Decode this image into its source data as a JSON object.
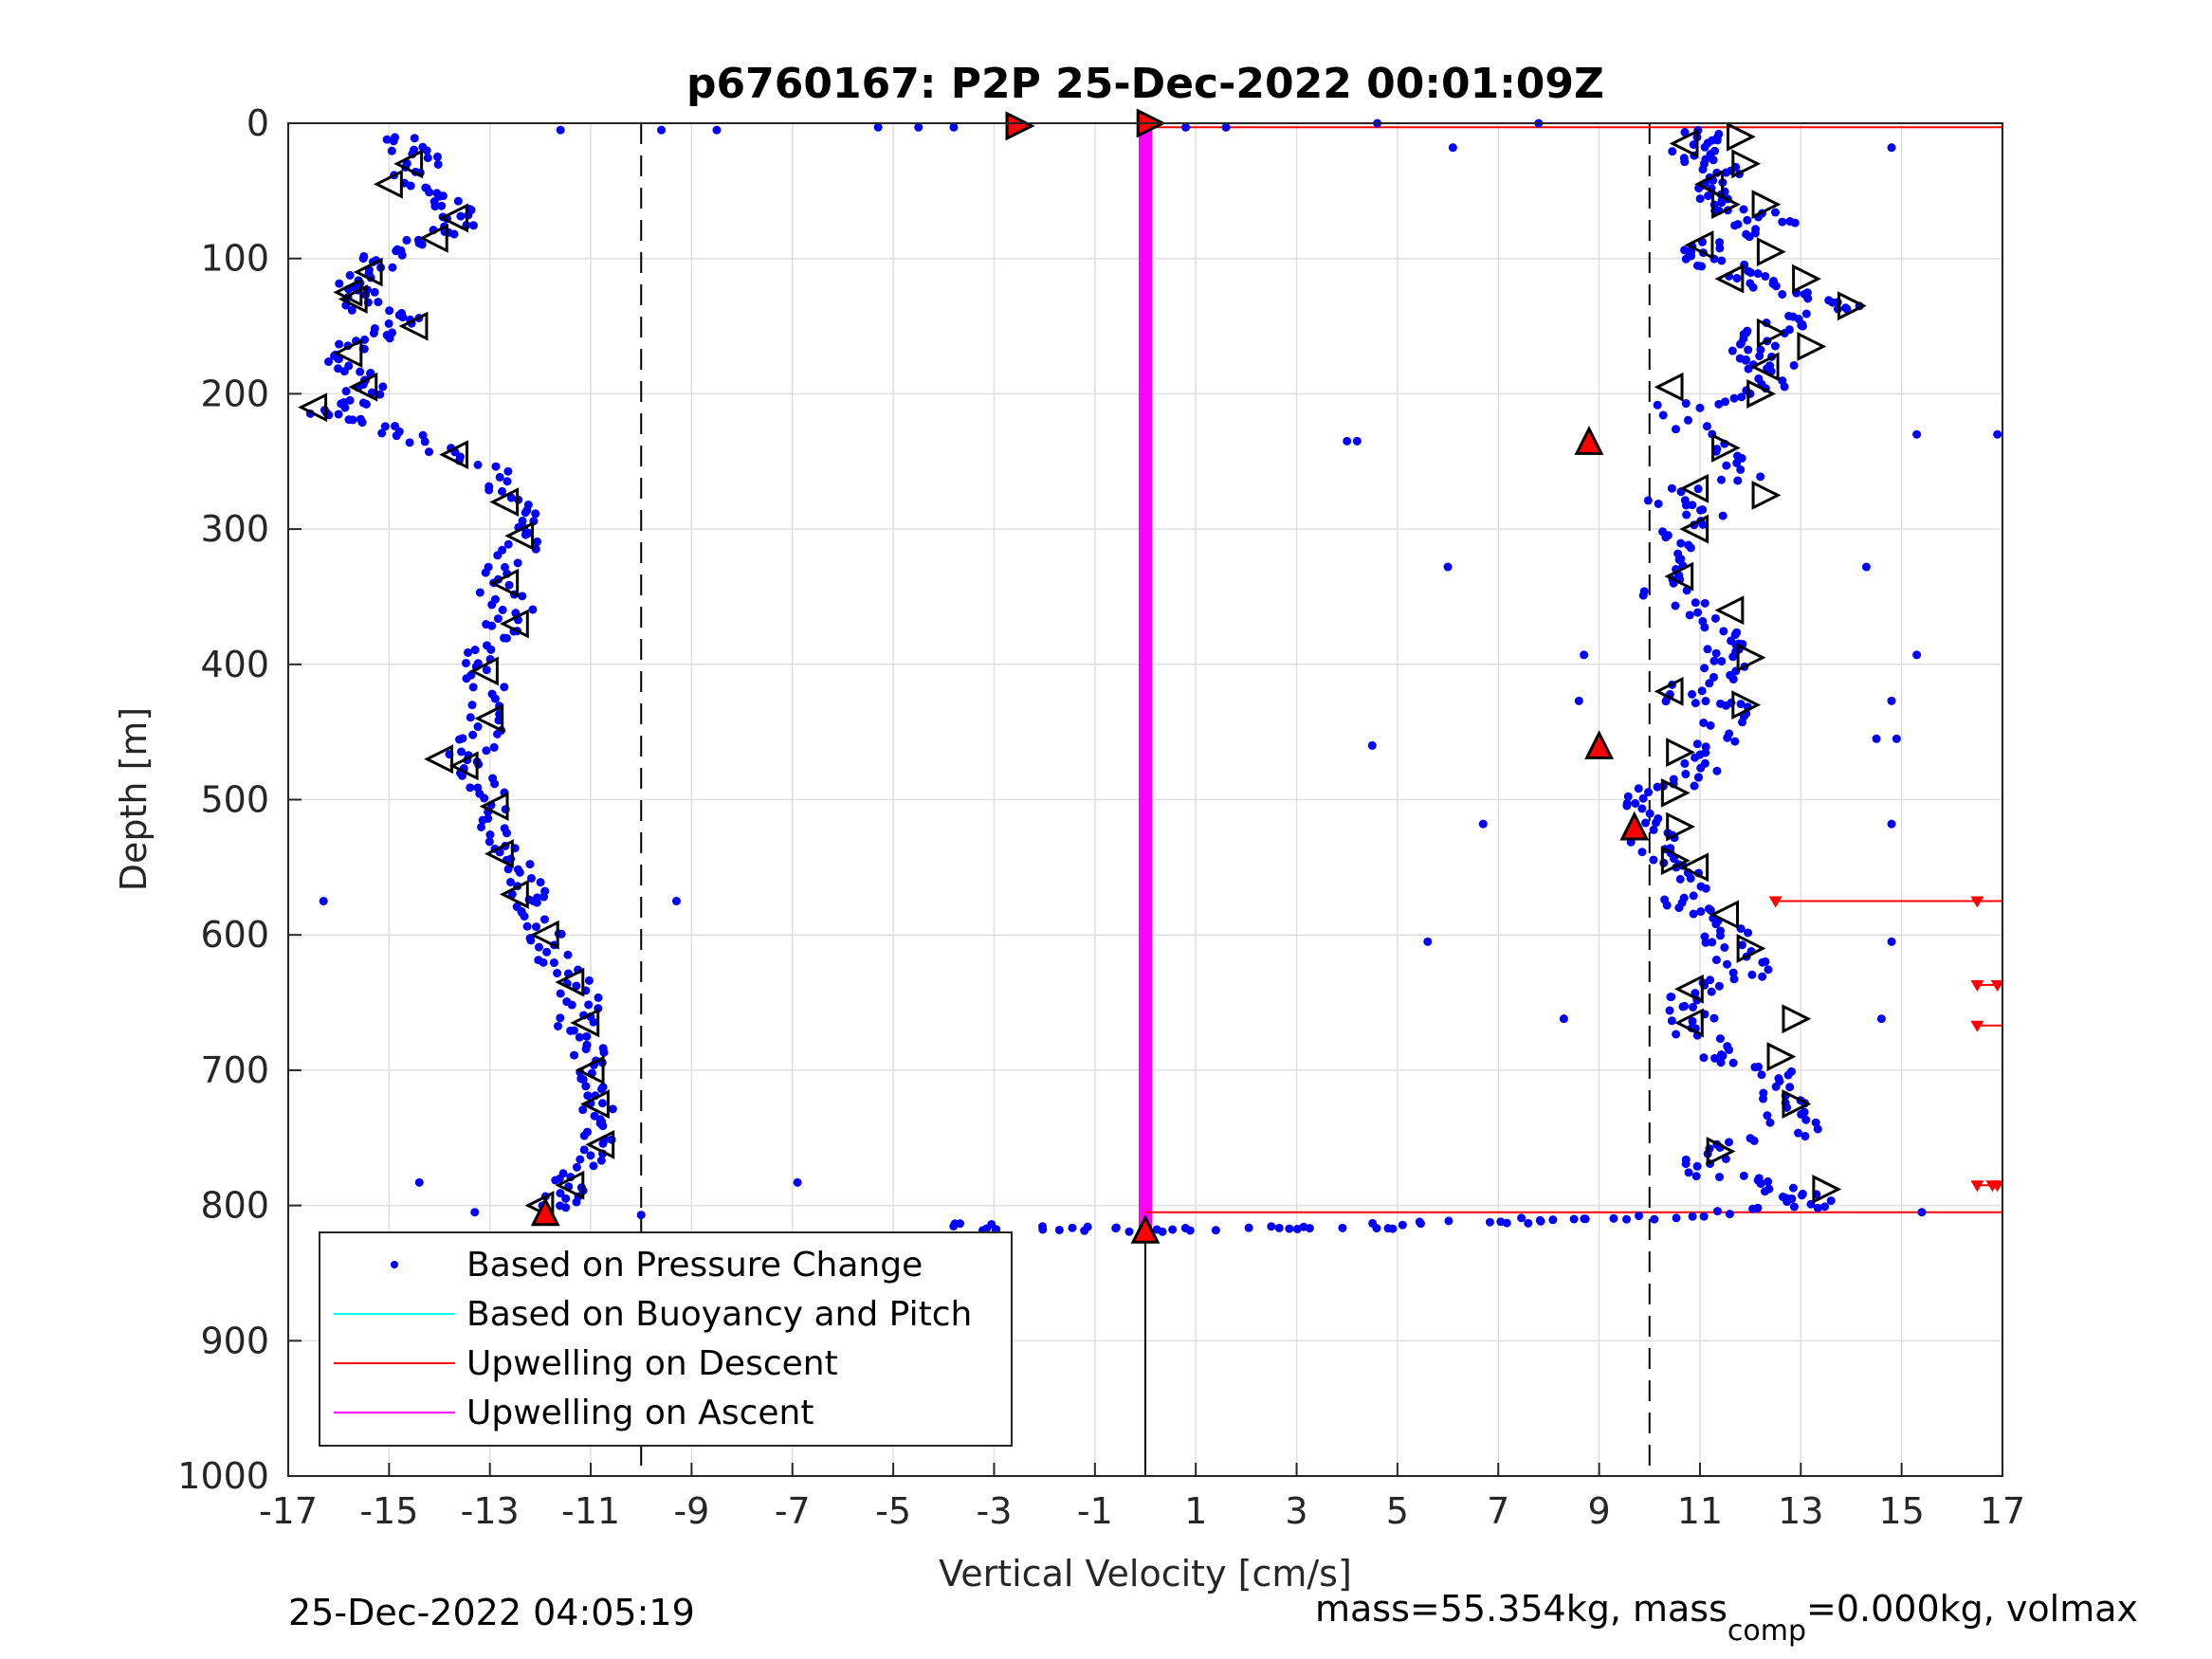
{
  "chart_data": {
    "type": "scatter",
    "title": "p6760167: P2P 25-Dec-2022 00:01:09Z",
    "xlabel": "Vertical Velocity [cm/s]",
    "ylabel": "Depth [m]",
    "xlim": [
      -17,
      17
    ],
    "ylim": [
      0,
      1000
    ],
    "y_reversed": true,
    "grid": true,
    "x_ticks": [
      "-17",
      "-15",
      "-13",
      "-11",
      "-9",
      "-7",
      "-5",
      "-3",
      "-1",
      "1",
      "3",
      "5",
      "7",
      "9",
      "11",
      "13",
      "15",
      "17"
    ],
    "y_ticks": [
      "0",
      "100",
      "200",
      "300",
      "400",
      "500",
      "600",
      "700",
      "800",
      "900",
      "1000"
    ],
    "reference_lines_x": [
      -10,
      0,
      10
    ],
    "legend": {
      "placement": "bottom-left",
      "entries": [
        {
          "label": "Based on Pressure Change",
          "color": "#0000ff",
          "marker": "dot"
        },
        {
          "label": "Based on Buoyancy and Pitch",
          "color": "#00ffff",
          "marker": "line"
        },
        {
          "label": "Upwelling on Descent",
          "color": "#ff0000",
          "marker": "line"
        },
        {
          "label": "Upwelling on Ascent",
          "color": "#ff00ff",
          "marker": "line"
        }
      ]
    },
    "series": [
      {
        "name": "Based on Pressure Change",
        "color": "#0000ff",
        "descent_profile": [
          [
            11.2,
            5
          ],
          [
            11.0,
            15
          ],
          [
            10.7,
            25
          ],
          [
            11.5,
            35
          ],
          [
            11.2,
            45
          ],
          [
            11.0,
            55
          ],
          [
            11.8,
            65
          ],
          [
            12.5,
            72
          ],
          [
            11.6,
            85
          ],
          [
            11.0,
            95
          ],
          [
            11.4,
            105
          ],
          [
            12.0,
            115
          ],
          [
            12.5,
            125
          ],
          [
            14.0,
            135
          ],
          [
            12.8,
            145
          ],
          [
            12.4,
            155
          ],
          [
            12.0,
            165
          ],
          [
            12.2,
            175
          ],
          [
            12.5,
            185
          ],
          [
            12.0,
            200
          ],
          [
            10.3,
            210
          ],
          [
            11.2,
            240
          ],
          [
            11.8,
            260
          ],
          [
            10.3,
            280
          ],
          [
            11.0,
            290
          ],
          [
            10.5,
            310
          ],
          [
            10.2,
            330
          ],
          [
            10.3,
            350
          ],
          [
            11.5,
            370
          ],
          [
            11.5,
            385
          ],
          [
            11.8,
            395
          ],
          [
            11.3,
            410
          ],
          [
            10.4,
            425
          ],
          [
            11.6,
            430
          ],
          [
            11.5,
            450
          ],
          [
            10.9,
            470
          ],
          [
            10.9,
            485
          ],
          [
            10.0,
            495
          ],
          [
            9.9,
            510
          ],
          [
            10.0,
            530
          ],
          [
            10.2,
            545
          ],
          [
            10.7,
            555
          ],
          [
            10.6,
            575
          ],
          [
            11.3,
            585
          ],
          [
            11.5,
            600
          ],
          [
            11.8,
            615
          ],
          [
            11.9,
            630
          ],
          [
            10.8,
            640
          ],
          [
            10.7,
            655
          ],
          [
            10.9,
            670
          ],
          [
            11.3,
            690
          ],
          [
            12.6,
            700
          ],
          [
            12.4,
            715
          ],
          [
            12.8,
            730
          ],
          [
            12.9,
            745
          ],
          [
            11.3,
            760
          ],
          [
            11.0,
            775
          ],
          [
            12.7,
            785
          ],
          [
            12.9,
            795
          ],
          [
            13.3,
            800
          ],
          [
            10.5,
            808
          ],
          [
            9.0,
            810
          ],
          [
            7.0,
            812
          ],
          [
            5.0,
            815
          ],
          [
            3.0,
            817
          ],
          [
            1.0,
            818
          ],
          [
            -1.0,
            818
          ],
          [
            -3.0,
            817
          ],
          [
            -4.0,
            814
          ]
        ],
        "ascent_profile": [
          [
            -14.8,
            10
          ],
          [
            -14.6,
            20
          ],
          [
            -14.3,
            30
          ],
          [
            -14.7,
            45
          ],
          [
            -14.0,
            55
          ],
          [
            -13.6,
            65
          ],
          [
            -13.4,
            75
          ],
          [
            -14.2,
            85
          ],
          [
            -15.0,
            95
          ],
          [
            -15.3,
            105
          ],
          [
            -15.8,
            115
          ],
          [
            -15.4,
            125
          ],
          [
            -15.5,
            135
          ],
          [
            -14.8,
            145
          ],
          [
            -15.2,
            155
          ],
          [
            -15.7,
            165
          ],
          [
            -16.0,
            175
          ],
          [
            -15.4,
            185
          ],
          [
            -15.5,
            195
          ],
          [
            -15.6,
            205
          ],
          [
            -16.3,
            212
          ],
          [
            -15.8,
            220
          ],
          [
            -14.6,
            230
          ],
          [
            -13.8,
            245
          ],
          [
            -12.8,
            260
          ],
          [
            -12.6,
            280
          ],
          [
            -12.3,
            295
          ],
          [
            -12.4,
            310
          ],
          [
            -12.7,
            330
          ],
          [
            -12.8,
            345
          ],
          [
            -12.5,
            360
          ],
          [
            -12.8,
            375
          ],
          [
            -13.0,
            390
          ],
          [
            -13.3,
            405
          ],
          [
            -13.0,
            425
          ],
          [
            -13.1,
            445
          ],
          [
            -13.3,
            460
          ],
          [
            -13.7,
            472
          ],
          [
            -13.1,
            485
          ],
          [
            -12.9,
            500
          ],
          [
            -12.8,
            520
          ],
          [
            -12.7,
            535
          ],
          [
            -12.3,
            550
          ],
          [
            -12.2,
            565
          ],
          [
            -12.4,
            575
          ],
          [
            -12.1,
            590
          ],
          [
            -11.9,
            605
          ],
          [
            -11.6,
            620
          ],
          [
            -11.3,
            635
          ],
          [
            -11.2,
            650
          ],
          [
            -11.3,
            665
          ],
          [
            -11.0,
            680
          ],
          [
            -11.0,
            695
          ],
          [
            -11.1,
            710
          ],
          [
            -10.9,
            725
          ],
          [
            -10.9,
            740
          ],
          [
            -10.8,
            755
          ],
          [
            -11.2,
            770
          ],
          [
            -11.4,
            785
          ],
          [
            -11.6,
            795
          ],
          [
            -12.0,
            805
          ]
        ],
        "outliers": [
          [
            -11.6,
            5
          ],
          [
            -9.6,
            5
          ],
          [
            -8.5,
            5
          ],
          [
            -5.3,
            3
          ],
          [
            -4.5,
            3
          ],
          [
            -3.8,
            3
          ],
          [
            4.6,
            0
          ],
          [
            6.1,
            18
          ],
          [
            7.8,
            0
          ],
          [
            14.8,
            18
          ],
          [
            0.8,
            3
          ],
          [
            1.6,
            3
          ],
          [
            4.0,
            235
          ],
          [
            4.2,
            235
          ],
          [
            15.3,
            230
          ],
          [
            16.9,
            230
          ],
          [
            6.0,
            328
          ],
          [
            14.3,
            328
          ],
          [
            8.7,
            393
          ],
          [
            15.3,
            393
          ],
          [
            8.6,
            427
          ],
          [
            14.8,
            427
          ],
          [
            4.5,
            460
          ],
          [
            14.5,
            455
          ],
          [
            14.9,
            455
          ],
          [
            6.7,
            518
          ],
          [
            14.8,
            518
          ],
          [
            -16.3,
            575
          ],
          [
            -9.3,
            575
          ],
          [
            5.6,
            605
          ],
          [
            14.8,
            605
          ],
          [
            8.3,
            662
          ],
          [
            14.6,
            662
          ],
          [
            -14.4,
            783
          ],
          [
            -6.9,
            783
          ],
          [
            -13.3,
            805
          ],
          [
            -10.0,
            807
          ],
          [
            15.4,
            805
          ]
        ]
      },
      {
        "name": "Based on Buoyancy and Pitch",
        "color": "#00ffff",
        "values": []
      },
      {
        "name": "Upwelling on Descent",
        "color": "#ff0000",
        "segments": [
          {
            "x": [
              0,
              17
            ],
            "y": [
              3,
              3
            ]
          },
          {
            "x": [
              0,
              17
            ],
            "y": [
              805,
              805
            ]
          },
          {
            "x": [
              12.5,
              17
            ],
            "y": [
              575,
              575
            ]
          },
          {
            "x": [
              16.5,
              17
            ],
            "y": [
              637,
              637
            ]
          },
          {
            "x": [
              16.5,
              17
            ],
            "y": [
              667,
              667
            ]
          },
          {
            "x": [
              16.5,
              17
            ],
            "y": [
              785,
              785
            ]
          }
        ],
        "markers": [
          [
            12.5,
            575
          ],
          [
            16.5,
            575
          ],
          [
            16.5,
            637
          ],
          [
            16.9,
            637
          ],
          [
            16.5,
            667
          ],
          [
            16.5,
            785
          ],
          [
            16.8,
            785
          ],
          [
            16.9,
            785
          ]
        ]
      },
      {
        "name": "Upwelling on Ascent",
        "color": "#ff00ff",
        "segments": [
          {
            "x": [
              0,
              0
            ],
            "y": [
              0,
              818
            ]
          }
        ]
      }
    ],
    "triangles": {
      "descent_right": [
        [
          11.8,
          10
        ],
        [
          11.9,
          30
        ],
        [
          11.5,
          60
        ],
        [
          12.3,
          60
        ],
        [
          12.4,
          95
        ],
        [
          13.1,
          115
        ],
        [
          14.0,
          135
        ],
        [
          12.4,
          155
        ],
        [
          13.2,
          165
        ],
        [
          12.2,
          200
        ],
        [
          11.5,
          240
        ],
        [
          12.3,
          275
        ],
        [
          12.0,
          395
        ],
        [
          11.9,
          430
        ],
        [
          10.6,
          465
        ],
        [
          10.5,
          495
        ],
        [
          10.6,
          520
        ],
        [
          10.5,
          545
        ],
        [
          12.0,
          610
        ],
        [
          12.9,
          662
        ],
        [
          12.6,
          690
        ],
        [
          12.9,
          725
        ],
        [
          11.4,
          760
        ],
        [
          13.5,
          788
        ],
        [
          -2.5,
          2
        ],
        [
          0.1,
          0
        ]
      ],
      "descent_left": [
        [
          10.7,
          15
        ],
        [
          11.2,
          45
        ],
        [
          11.0,
          90
        ],
        [
          11.6,
          115
        ],
        [
          12.3,
          180
        ],
        [
          10.4,
          195
        ],
        [
          10.9,
          270
        ],
        [
          10.9,
          300
        ],
        [
          10.6,
          335
        ],
        [
          11.6,
          360
        ],
        [
          10.4,
          420
        ],
        [
          10.9,
          550
        ],
        [
          11.5,
          585
        ],
        [
          10.8,
          640
        ],
        [
          10.8,
          665
        ]
      ],
      "ascent_left": [
        [
          -15.0,
          45
        ],
        [
          -14.6,
          30
        ],
        [
          -13.7,
          70
        ],
        [
          -14.1,
          85
        ],
        [
          -15.4,
          110
        ],
        [
          -15.7,
          130
        ],
        [
          -15.8,
          125
        ],
        [
          -14.5,
          150
        ],
        [
          -15.8,
          170
        ],
        [
          -15.5,
          195
        ],
        [
          -16.5,
          210
        ],
        [
          -13.7,
          245
        ],
        [
          -12.7,
          280
        ],
        [
          -12.4,
          305
        ],
        [
          -12.7,
          340
        ],
        [
          -12.5,
          370
        ],
        [
          -13.1,
          405
        ],
        [
          -13.0,
          440
        ],
        [
          -14.0,
          470
        ],
        [
          -13.5,
          475
        ],
        [
          -12.9,
          505
        ],
        [
          -12.8,
          540
        ],
        [
          -12.5,
          570
        ],
        [
          -11.9,
          600
        ],
        [
          -11.4,
          635
        ],
        [
          -11.1,
          665
        ],
        [
          -11.0,
          700
        ],
        [
          -10.9,
          725
        ],
        [
          -10.8,
          755
        ],
        [
          -11.4,
          785
        ],
        [
          -12.0,
          800
        ]
      ],
      "red_markers": [
        [
          -2.5,
          2
        ],
        [
          0.1,
          0
        ],
        [
          8.8,
          235
        ],
        [
          9.0,
          460
        ],
        [
          9.7,
          520
        ],
        [
          -11.9,
          805
        ],
        [
          0.0,
          818
        ]
      ]
    }
  },
  "footer": {
    "timestamp": "25-Dec-2022 04:05:19",
    "mass_text": "mass=55.354kg, mass",
    "mass_sub": "comp",
    "mass_rest": "=0.000kg, volmax"
  }
}
